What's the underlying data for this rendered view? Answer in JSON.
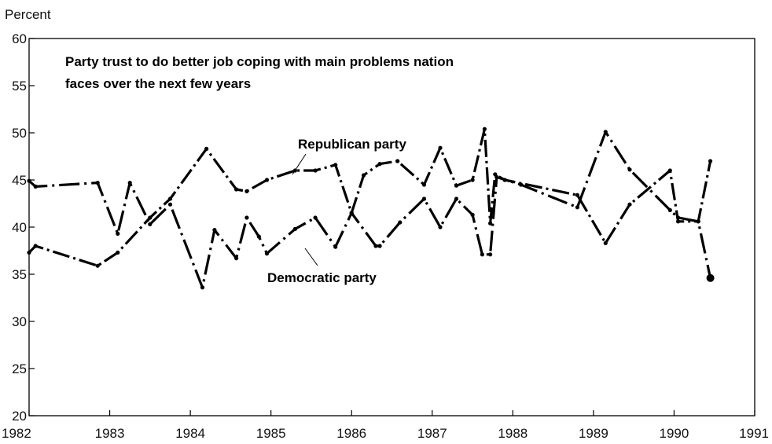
{
  "chart_data": {
    "type": "line",
    "title_lines": [
      "Party trust to do better job coping with main problems nation",
      "faces over the next few years"
    ],
    "ylabel": "Percent",
    "xlabel": "",
    "xlim": [
      1982,
      1991
    ],
    "ylim": [
      20,
      60
    ],
    "y_ticks": [
      20,
      25,
      30,
      35,
      40,
      45,
      50,
      55,
      60
    ],
    "x_ticks": [
      "1982",
      "1983",
      "1984",
      "1985",
      "1986",
      "1987",
      "1988",
      "1989",
      "1990",
      "1991"
    ],
    "grid": false,
    "series": [
      {
        "name": "Republican party",
        "color": "#000000",
        "x": [
          1982.0,
          1982.08,
          1982.85,
          1983.1,
          1983.5,
          1983.75,
          1984.2,
          1984.57,
          1984.7,
          1984.95,
          1985.3,
          1985.55,
          1985.8,
          1986.0,
          1986.15,
          1986.35,
          1986.57,
          1986.9,
          1987.1,
          1987.3,
          1987.5,
          1987.65,
          1987.72,
          1987.78,
          1987.9,
          1988.8,
          1989.15,
          1989.45,
          1989.95,
          1990.05,
          1990.3,
          1990.45
        ],
        "y": [
          37.3,
          38.0,
          35.9,
          37.3,
          41.0,
          43.0,
          48.3,
          44.0,
          43.8,
          45.0,
          46.0,
          46.0,
          46.6,
          41.5,
          45.5,
          46.7,
          47.0,
          44.5,
          48.4,
          44.4,
          45.0,
          50.4,
          40.4,
          45.6,
          45.0,
          43.4,
          38.3,
          42.4,
          46.0,
          40.6,
          40.6,
          47.0
        ]
      },
      {
        "name": "Democratic party",
        "color": "#000000",
        "x": [
          1982.0,
          1982.08,
          1982.85,
          1983.1,
          1983.25,
          1983.5,
          1983.75,
          1984.15,
          1984.3,
          1984.57,
          1984.7,
          1984.85,
          1984.95,
          1985.3,
          1985.55,
          1985.8,
          1986.0,
          1986.3,
          1986.35,
          1986.6,
          1986.9,
          1987.1,
          1987.3,
          1987.5,
          1987.62,
          1987.72,
          1987.8,
          1988.1,
          1988.8,
          1989.15,
          1989.45,
          1989.95,
          1990.05,
          1990.3,
          1990.45
        ],
        "y": [
          44.9,
          44.3,
          44.7,
          39.3,
          44.7,
          40.3,
          42.4,
          33.6,
          39.7,
          36.7,
          41.0,
          39.0,
          37.2,
          39.8,
          41.0,
          37.9,
          41.5,
          38.0,
          38.0,
          40.5,
          43.0,
          40.0,
          43.0,
          41.3,
          37.1,
          37.1,
          45.3,
          44.5,
          42.1,
          50.1,
          46.1,
          41.8,
          41.0,
          40.6,
          34.6
        ]
      }
    ]
  }
}
